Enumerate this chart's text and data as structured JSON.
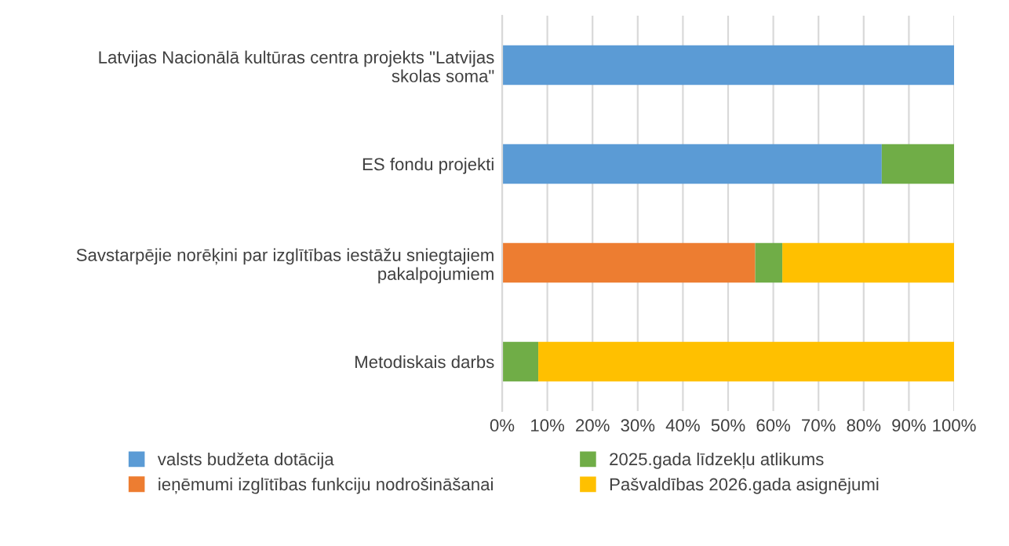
{
  "chart_data": {
    "type": "bar",
    "orientation": "horizontal",
    "stacked": true,
    "categories": [
      "Latvijas Nacionālā kultūras centra projekts \"Latvijas skolas soma\"",
      "ES fondu projekti",
      "Savstarpējie norēķini par izglītības iestāžu sniegtajiem pakalpojumiem",
      "Metodiskais darbs"
    ],
    "series": [
      {
        "name": "valsts budžeta dotācija",
        "color": "#5b9bd5",
        "values": [
          100,
          84,
          null,
          null
        ]
      },
      {
        "name": "ieņēmumi izglītības funkciju nodrošināšanai",
        "color": "#ed7d31",
        "values": [
          null,
          null,
          56,
          null
        ]
      },
      {
        "name": "2025.gada līdzekļu atlikums",
        "color": "#70ad47",
        "values": [
          null,
          16,
          6,
          8
        ]
      },
      {
        "name": "Pašvaldības 2026.gada asignējumi",
        "color": "#ffc000",
        "values": [
          null,
          null,
          38,
          92
        ]
      }
    ],
    "xlim": [
      0,
      100
    ],
    "xticks": [
      {
        "value": 0,
        "label": "0%"
      },
      {
        "value": 10,
        "label": "10%"
      },
      {
        "value": 20,
        "label": "20%"
      },
      {
        "value": 30,
        "label": "30%"
      },
      {
        "value": 40,
        "label": "40%"
      },
      {
        "value": 50,
        "label": "50%"
      },
      {
        "value": 60,
        "label": "60%"
      },
      {
        "value": 70,
        "label": "70%"
      },
      {
        "value": 80,
        "label": "80%"
      },
      {
        "value": 90,
        "label": "90%"
      },
      {
        "value": 100,
        "label": "100%"
      }
    ],
    "grid": "x",
    "legend": "bottom"
  }
}
